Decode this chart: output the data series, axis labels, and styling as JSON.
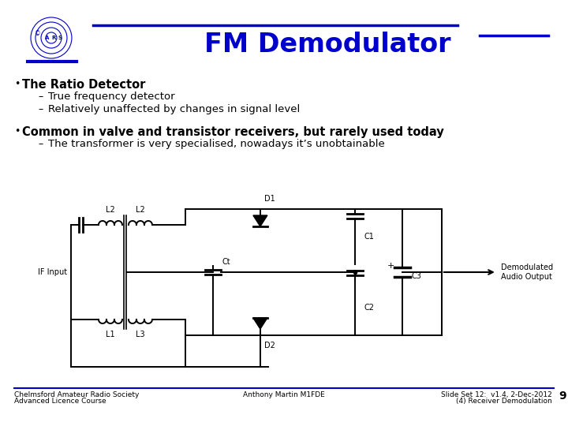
{
  "title": "FM Demodulator",
  "title_color": "#0000CC",
  "title_fontsize": 24,
  "bg_color": "#FFFFFF",
  "blue_line_color": "#0000CC",
  "bullet1_bold": "The Ratio Detector",
  "bullet1_sub": [
    "True frequency detector",
    "Relatively unaffected by changes in signal level"
  ],
  "bullet2_bold": "Common in valve and transistor receivers, but rarely used today",
  "bullet2_sub": [
    "The transformer is very specialised, nowadays it’s unobtainable"
  ],
  "footer_left1": "Chelmsford Amateur Radio Society",
  "footer_left2": "Advanced Licence Course",
  "footer_center": "Anthony Martin M1FDE",
  "footer_right1": "Slide Set 12:  v1.4, 2-Dec-2012",
  "footer_right2": "(4) Receiver Demodulation",
  "footer_page": "9",
  "text_color": "#000000",
  "footer_color": "#000000",
  "font_size_bullet": 10.5,
  "font_size_sub": 9.5,
  "font_size_footer": 6.5
}
